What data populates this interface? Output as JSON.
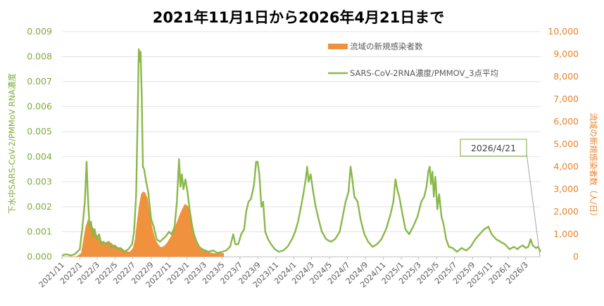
{
  "chart_data": {
    "type": "line",
    "title": "2021年11月1日から2026年4月21日まで",
    "ylabel": "下水中SARS-CoV-2/PMMoV RNA濃度",
    "ylabel_right": "流域の新規感染者数（人/日）",
    "ylim": [
      0,
      0.009
    ],
    "ylim_right": [
      0,
      10000
    ],
    "yticks_left": [
      "0.000",
      "0.001",
      "0.002",
      "0.003",
      "0.004",
      "0.005",
      "0.006",
      "0.007",
      "0.008",
      "0.009"
    ],
    "yticks_right": [
      "0",
      "1,000",
      "2,000",
      "3,000",
      "4,000",
      "5,000",
      "6,000",
      "7,000",
      "8,000",
      "9,000",
      "10,000"
    ],
    "x_start": "2021-11-01",
    "x_end": "2026-04-21",
    "xticks": [
      "2021/11",
      "2022/1",
      "2022/3",
      "2022/5",
      "2022/7",
      "2022/9",
      "2022/11",
      "2023/1",
      "2023/3",
      "2023/5",
      "2023/7",
      "2023/9",
      "2023/11",
      "2024/1",
      "2024/3",
      "2024/5",
      "2024/7",
      "2024/9",
      "2024/11",
      "2025/1",
      "2025/3",
      "2025/5",
      "2025/7",
      "2025/9",
      "2025/11",
      "2026/1",
      "2026/3"
    ],
    "legend_position": "top-right",
    "annotation": "2026/4/21",
    "grid": true,
    "series": [
      {
        "name": "流域の新規感染者数",
        "type": "area",
        "axis": "right",
        "color": "#f0913e",
        "points": [
          [
            "2021-11-01",
            0
          ],
          [
            "2021-12-01",
            5
          ],
          [
            "2021-12-20",
            20
          ],
          [
            "2022-01-05",
            150
          ],
          [
            "2022-01-12",
            700
          ],
          [
            "2022-01-20",
            1300
          ],
          [
            "2022-01-28",
            1650
          ],
          [
            "2022-02-05",
            1500
          ],
          [
            "2022-02-12",
            1350
          ],
          [
            "2022-02-20",
            1200
          ],
          [
            "2022-03-01",
            950
          ],
          [
            "2022-03-12",
            750
          ],
          [
            "2022-03-25",
            620
          ],
          [
            "2022-04-05",
            680
          ],
          [
            "2022-04-18",
            620
          ],
          [
            "2022-05-01",
            480
          ],
          [
            "2022-05-15",
            420
          ],
          [
            "2022-05-25",
            380
          ],
          [
            "2022-06-05",
            260
          ],
          [
            "2022-06-20",
            220
          ],
          [
            "2022-07-01",
            380
          ],
          [
            "2022-07-08",
            800
          ],
          [
            "2022-07-15",
            1600
          ],
          [
            "2022-07-22",
            2300
          ],
          [
            "2022-07-29",
            2800
          ],
          [
            "2022-08-05",
            2900
          ],
          [
            "2022-08-12",
            2850
          ],
          [
            "2022-08-20",
            2600
          ],
          [
            "2022-08-28",
            1900
          ],
          [
            "2022-09-05",
            1300
          ],
          [
            "2022-09-15",
            800
          ],
          [
            "2022-09-25",
            550
          ],
          [
            "2022-10-05",
            420
          ],
          [
            "2022-10-15",
            480
          ],
          [
            "2022-10-25",
            620
          ],
          [
            "2022-11-05",
            850
          ],
          [
            "2022-11-15",
            1100
          ],
          [
            "2022-11-25",
            1450
          ],
          [
            "2022-12-05",
            1800
          ],
          [
            "2022-12-15",
            2100
          ],
          [
            "2022-12-25",
            2350
          ],
          [
            "2023-01-05",
            2250
          ],
          [
            "2023-01-12",
            1900
          ],
          [
            "2023-01-20",
            1450
          ],
          [
            "2023-01-28",
            1000
          ],
          [
            "2023-02-05",
            650
          ],
          [
            "2023-02-15",
            420
          ],
          [
            "2023-02-25",
            300
          ],
          [
            "2023-03-10",
            220
          ],
          [
            "2023-03-25",
            180
          ],
          [
            "2023-04-10",
            150
          ],
          [
            "2023-04-25",
            170
          ],
          [
            "2023-05-07",
            160
          ],
          [
            "2023-05-08",
            0
          ]
        ]
      },
      {
        "name": "SARS-CoV-2RNA濃度/PMMOV_3点平均",
        "type": "line",
        "axis": "left",
        "color": "#8ab84a",
        "points": [
          [
            "2021-11-01",
            5e-05
          ],
          [
            "2021-11-15",
            0.0001
          ],
          [
            "2021-12-01",
            5e-05
          ],
          [
            "2021-12-15",
            0.0001
          ],
          [
            "2022-01-01",
            0.0003
          ],
          [
            "2022-01-10",
            0.0012
          ],
          [
            "2022-01-18",
            0.0022
          ],
          [
            "2022-01-24",
            0.0038
          ],
          [
            "2022-01-28",
            0.0025
          ],
          [
            "2022-02-03",
            0.0012
          ],
          [
            "2022-02-08",
            0.0014
          ],
          [
            "2022-02-14",
            0.0008
          ],
          [
            "2022-02-20",
            0.0011
          ],
          [
            "2022-02-28",
            0.0007
          ],
          [
            "2022-03-08",
            0.0009
          ],
          [
            "2022-03-15",
            0.0005
          ],
          [
            "2022-03-22",
            0.0006
          ],
          [
            "2022-04-01",
            0.0005
          ],
          [
            "2022-04-10",
            0.0006
          ],
          [
            "2022-04-20",
            0.00035
          ],
          [
            "2022-05-01",
            0.00045
          ],
          [
            "2022-05-10",
            0.0003
          ],
          [
            "2022-05-20",
            0.00035
          ],
          [
            "2022-06-01",
            0.0002
          ],
          [
            "2022-06-15",
            0.0003
          ],
          [
            "2022-06-28",
            0.0005
          ],
          [
            "2022-07-05",
            0.001
          ],
          [
            "2022-07-12",
            0.0025
          ],
          [
            "2022-07-17",
            0.0055
          ],
          [
            "2022-07-21",
            0.0083
          ],
          [
            "2022-07-24",
            0.0078
          ],
          [
            "2022-07-27",
            0.0082
          ],
          [
            "2022-07-31",
            0.0065
          ],
          [
            "2022-08-04",
            0.0036
          ],
          [
            "2022-08-08",
            0.0035
          ],
          [
            "2022-08-15",
            0.003
          ],
          [
            "2022-08-22",
            0.0026
          ],
          [
            "2022-09-01",
            0.0015
          ],
          [
            "2022-09-10",
            0.0012
          ],
          [
            "2022-09-20",
            0.0007
          ],
          [
            "2022-10-01",
            0.0006
          ],
          [
            "2022-10-10",
            0.0007
          ],
          [
            "2022-10-20",
            0.0008
          ],
          [
            "2022-11-01",
            0.001
          ],
          [
            "2022-11-10",
            0.0009
          ],
          [
            "2022-11-20",
            0.0012
          ],
          [
            "2022-11-28",
            0.0022
          ],
          [
            "2022-12-05",
            0.0039
          ],
          [
            "2022-12-10",
            0.0028
          ],
          [
            "2022-12-15",
            0.0033
          ],
          [
            "2022-12-20",
            0.0027
          ],
          [
            "2022-12-27",
            0.0031
          ],
          [
            "2023-01-03",
            0.0026
          ],
          [
            "2023-01-10",
            0.0019
          ],
          [
            "2023-01-18",
            0.0013
          ],
          [
            "2023-01-25",
            0.0009
          ],
          [
            "2023-02-03",
            0.0006
          ],
          [
            "2023-02-12",
            0.0004
          ],
          [
            "2023-02-22",
            0.0003
          ],
          [
            "2023-03-05",
            0.00025
          ],
          [
            "2023-03-15",
            0.0002
          ],
          [
            "2023-04-01",
            0.00025
          ],
          [
            "2023-04-15",
            0.00015
          ],
          [
            "2023-05-01",
            0.0002
          ],
          [
            "2023-05-15",
            0.00025
          ],
          [
            "2023-05-28",
            0.0004
          ],
          [
            "2023-06-08",
            0.0009
          ],
          [
            "2023-06-15",
            0.0005
          ],
          [
            "2023-06-25",
            0.0005
          ],
          [
            "2023-07-05",
            0.0009
          ],
          [
            "2023-07-15",
            0.0011
          ],
          [
            "2023-07-22",
            0.0018
          ],
          [
            "2023-07-30",
            0.0022
          ],
          [
            "2023-08-07",
            0.0023
          ],
          [
            "2023-08-13",
            0.0026
          ],
          [
            "2023-08-18",
            0.0029
          ],
          [
            "2023-08-25",
            0.0038
          ],
          [
            "2023-08-30",
            0.0038
          ],
          [
            "2023-09-05",
            0.0033
          ],
          [
            "2023-09-12",
            0.002
          ],
          [
            "2023-09-18",
            0.0022
          ],
          [
            "2023-09-25",
            0.001
          ],
          [
            "2023-10-05",
            0.0007
          ],
          [
            "2023-10-15",
            0.0005
          ],
          [
            "2023-10-28",
            0.0003
          ],
          [
            "2023-11-10",
            0.0002
          ],
          [
            "2023-11-25",
            0.00025
          ],
          [
            "2023-12-10",
            0.0004
          ],
          [
            "2023-12-25",
            0.0007
          ],
          [
            "2024-01-05",
            0.001
          ],
          [
            "2024-01-15",
            0.0014
          ],
          [
            "2024-01-25",
            0.002
          ],
          [
            "2024-02-02",
            0.0025
          ],
          [
            "2024-02-10",
            0.0031
          ],
          [
            "2024-02-15",
            0.0036
          ],
          [
            "2024-02-20",
            0.003
          ],
          [
            "2024-02-27",
            0.0033
          ],
          [
            "2024-03-05",
            0.0027
          ],
          [
            "2024-03-15",
            0.002
          ],
          [
            "2024-03-25",
            0.0015
          ],
          [
            "2024-04-05",
            0.001
          ],
          [
            "2024-04-20",
            0.0007
          ],
          [
            "2024-05-05",
            0.0006
          ],
          [
            "2024-05-20",
            0.0007
          ],
          [
            "2024-06-05",
            0.001
          ],
          [
            "2024-06-15",
            0.0016
          ],
          [
            "2024-06-25",
            0.0022
          ],
          [
            "2024-07-05",
            0.0026
          ],
          [
            "2024-07-12",
            0.0036
          ],
          [
            "2024-07-18",
            0.0031
          ],
          [
            "2024-07-25",
            0.0024
          ],
          [
            "2024-08-05",
            0.0022
          ],
          [
            "2024-08-15",
            0.0015
          ],
          [
            "2024-08-28",
            0.0009
          ],
          [
            "2024-09-10",
            0.0006
          ],
          [
            "2024-09-25",
            0.0004
          ],
          [
            "2024-10-10",
            0.0005
          ],
          [
            "2024-10-25",
            0.0007
          ],
          [
            "2024-11-10",
            0.0011
          ],
          [
            "2024-11-25",
            0.0017
          ],
          [
            "2024-12-05",
            0.0022
          ],
          [
            "2024-12-12",
            0.0031
          ],
          [
            "2024-12-18",
            0.0027
          ],
          [
            "2024-12-25",
            0.0024
          ],
          [
            "2025-01-05",
            0.0017
          ],
          [
            "2025-01-15",
            0.0011
          ],
          [
            "2025-01-28",
            0.0009
          ],
          [
            "2025-02-10",
            0.0012
          ],
          [
            "2025-02-25",
            0.0016
          ],
          [
            "2025-03-10",
            0.0022
          ],
          [
            "2025-03-20",
            0.0024
          ],
          [
            "2025-03-28",
            0.0028
          ],
          [
            "2025-04-03",
            0.0034
          ],
          [
            "2025-04-08",
            0.0036
          ],
          [
            "2025-04-12",
            0.0029
          ],
          [
            "2025-04-17",
            0.0034
          ],
          [
            "2025-04-22",
            0.0024
          ],
          [
            "2025-04-27",
            0.0032
          ],
          [
            "2025-05-04",
            0.0019
          ],
          [
            "2025-05-10",
            0.0025
          ],
          [
            "2025-05-18",
            0.0016
          ],
          [
            "2025-05-25",
            0.0013
          ],
          [
            "2025-06-03",
            0.0007
          ],
          [
            "2025-06-12",
            0.0004
          ],
          [
            "2025-06-25",
            0.00035
          ],
          [
            "2025-07-10",
            0.0002
          ],
          [
            "2025-07-25",
            0.00035
          ],
          [
            "2025-08-10",
            0.00025
          ],
          [
            "2025-08-25",
            0.0004
          ],
          [
            "2025-09-10",
            0.0007
          ],
          [
            "2025-09-25",
            0.0009
          ],
          [
            "2025-10-10",
            0.0011
          ],
          [
            "2025-10-25",
            0.0012
          ],
          [
            "2025-11-05",
            0.0009
          ],
          [
            "2025-11-20",
            0.0007
          ],
          [
            "2025-12-05",
            0.0006
          ],
          [
            "2025-12-20",
            0.0005
          ],
          [
            "2026-01-05",
            0.0003
          ],
          [
            "2026-01-20",
            0.0004
          ],
          [
            "2026-02-01",
            0.0003
          ],
          [
            "2026-02-10",
            0.0004
          ],
          [
            "2026-02-20",
            0.00045
          ],
          [
            "2026-03-01",
            0.00035
          ],
          [
            "2026-03-10",
            0.0004
          ],
          [
            "2026-03-18",
            0.0007
          ],
          [
            "2026-03-25",
            0.00045
          ],
          [
            "2026-04-05",
            0.00035
          ],
          [
            "2026-04-12",
            0.0004
          ],
          [
            "2026-04-21",
            0.0002
          ]
        ]
      }
    ]
  }
}
